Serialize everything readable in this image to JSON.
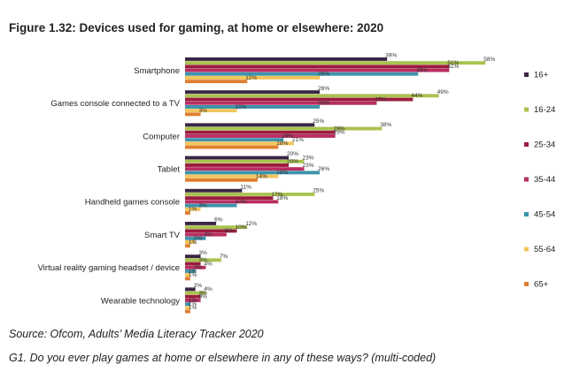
{
  "figure_title": "Figure 1.32: Devices used for gaming, at home or elsewhere: 2020",
  "source": "Source: Ofcom, Adults’ Media Literacy Tracker 2020",
  "question": "G1. Do you ever play games at home or elsewhere in any of these ways? (multi-coded)",
  "chart_data": {
    "type": "bar",
    "orientation": "horizontal",
    "title": "Figure 1.32: Devices used for gaming, at home or elsewhere: 2020",
    "xlim": [
      0,
      60
    ],
    "grid": false,
    "legend_position": "right",
    "value_suffix": "%",
    "categories": [
      "Smartphone",
      "Games console connected to a TV",
      "Computer",
      "Tablet",
      "Handheld games console",
      "Smart TV",
      "Virtual reality gaming headset / device",
      "Wearable technology"
    ],
    "series": [
      {
        "name": "16+",
        "color": "#3b2645",
        "values": [
          39,
          26,
          25,
          20,
          11,
          6,
          3,
          2
        ]
      },
      {
        "name": "16-24",
        "color": "#a9c24f",
        "values": [
          58,
          49,
          38,
          23,
          25,
          12,
          7,
          4
        ]
      },
      {
        "name": "25-34",
        "color": "#9b1c3e",
        "values": [
          51,
          44,
          29,
          20,
          17,
          10,
          3,
          3
        ]
      },
      {
        "name": "35-44",
        "color": "#b82e62",
        "values": [
          51,
          37,
          29,
          23,
          18,
          8,
          4,
          3
        ]
      },
      {
        "name": "45-54",
        "color": "#3d93ab",
        "values": [
          45,
          26,
          19,
          26,
          10,
          4,
          2,
          1
        ]
      },
      {
        "name": "55-64",
        "color": "#f2c45c",
        "values": [
          26,
          10,
          21,
          18,
          3,
          2,
          1,
          1
        ]
      },
      {
        "name": "65+",
        "color": "#e07d2f",
        "values": [
          12,
          3,
          18,
          14,
          1,
          1,
          1,
          1
        ]
      }
    ]
  }
}
